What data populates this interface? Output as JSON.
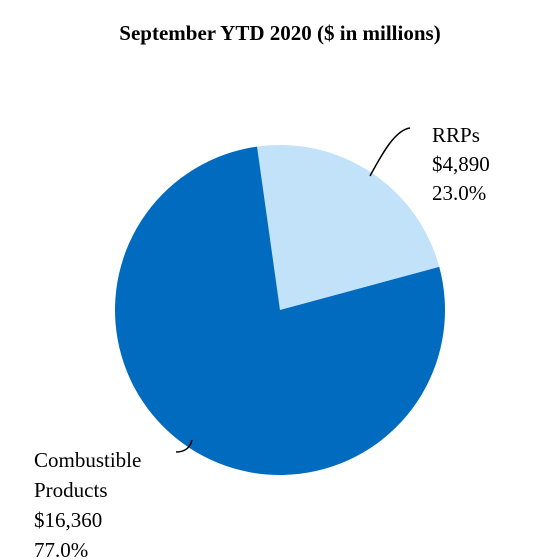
{
  "chart_data": {
    "type": "pie",
    "title": "September YTD 2020 ($ in millions)",
    "slices": [
      {
        "label_lines": [
          "RRPs",
          "$4,890",
          "23.0%"
        ],
        "category": "RRPs",
        "value": 4890,
        "value_label": "$4,890",
        "percent": 23.0,
        "percent_label": "23.0%",
        "color": "#c2e2fa"
      },
      {
        "label_lines": [
          "Combustible",
          "Products",
          "$16,360",
          "77.0%"
        ],
        "category": "Combustible Products",
        "value": 16360,
        "value_label": "$16,360",
        "percent": 77.0,
        "percent_label": "77.0%",
        "color": "#006bbf"
      }
    ]
  }
}
